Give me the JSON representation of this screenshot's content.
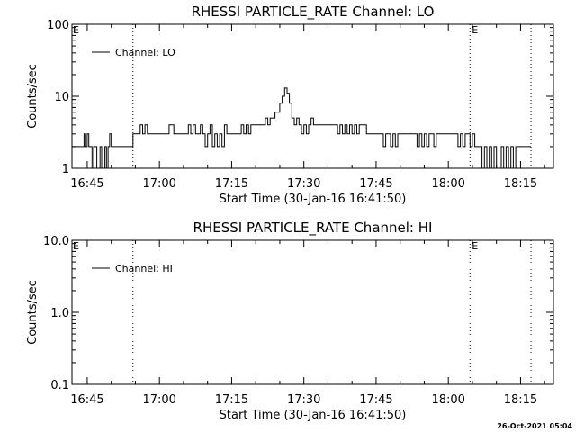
{
  "footer": {
    "timestamp": "26-Oct-2021 05:04"
  },
  "chart_data": [
    {
      "type": "line",
      "title": "RHESSI PARTICLE_RATE Channel: LO",
      "xlabel": "Start Time (30-Jan-16 16:41:50)",
      "ylabel": "Counts/sec",
      "xlim": [
        "16:41:50",
        "18:21:50"
      ],
      "ylim": [
        1,
        100
      ],
      "yscale": "log",
      "xticks": [
        "16:45",
        "17:00",
        "17:15",
        "17:30",
        "17:45",
        "18:00",
        "18:15"
      ],
      "yticks": [
        "1",
        "10",
        "100"
      ],
      "grid": false,
      "legend": {
        "position": "top-left",
        "entries": [
          "Channel: LO"
        ]
      },
      "color": "#000000",
      "markers": [
        {
          "time": "16:54:30",
          "label": ""
        },
        {
          "time": "18:04:30",
          "label": "E"
        },
        {
          "time": "18:17:10",
          "label": ""
        }
      ],
      "corner_label": "E",
      "series": [
        {
          "name": "Channel: LO",
          "x": [
            "16:41:50",
            "16:44:00",
            "16:44:20",
            "16:44:40",
            "16:45:00",
            "16:45:20",
            "16:45:40",
            "16:46:00",
            "16:46:20",
            "16:46:40",
            "16:47:00",
            "16:47:20",
            "16:47:40",
            "16:48:00",
            "16:48:20",
            "16:48:40",
            "16:49:00",
            "16:49:20",
            "16:49:40",
            "16:50:00",
            "16:50:20",
            "16:54:30",
            "16:55:00",
            "16:55:30",
            "16:56:00",
            "16:56:30",
            "16:57:00",
            "16:57:30",
            "16:58:00",
            "16:58:30",
            "16:59:00",
            "17:00:00",
            "17:01:00",
            "17:02:00",
            "17:03:00",
            "17:04:00",
            "17:05:00",
            "17:06:00",
            "17:06:30",
            "17:07:00",
            "17:07:30",
            "17:08:00",
            "17:08:30",
            "17:09:00",
            "17:09:30",
            "17:10:00",
            "17:10:30",
            "17:11:00",
            "17:11:30",
            "17:12:00",
            "17:12:30",
            "17:13:00",
            "17:13:30",
            "17:14:00",
            "17:15:00",
            "17:16:00",
            "17:16:30",
            "17:17:00",
            "17:17:30",
            "17:18:00",
            "17:18:30",
            "17:19:00",
            "17:20:00",
            "17:21:00",
            "17:22:00",
            "17:22:30",
            "17:23:00",
            "17:23:30",
            "17:24:00",
            "17:24:30",
            "17:25:00",
            "17:25:30",
            "17:26:00",
            "17:26:30",
            "17:27:00",
            "17:27:30",
            "17:28:00",
            "17:28:30",
            "17:29:00",
            "17:29:30",
            "17:30:00",
            "17:30:30",
            "17:31:00",
            "17:31:30",
            "17:32:00",
            "17:33:00",
            "17:34:00",
            "17:35:00",
            "17:36:00",
            "17:37:00",
            "17:37:30",
            "17:38:00",
            "17:38:30",
            "17:39:00",
            "17:39:30",
            "17:40:00",
            "17:40:30",
            "17:41:00",
            "17:41:30",
            "17:42:00",
            "17:43:00",
            "17:44:00",
            "17:45:00",
            "17:46:00",
            "17:46:30",
            "17:47:00",
            "17:47:30",
            "17:48:00",
            "17:48:30",
            "17:49:00",
            "17:49:30",
            "17:50:00",
            "17:51:00",
            "17:52:00",
            "17:53:00",
            "17:53:30",
            "17:54:00",
            "17:54:30",
            "17:55:00",
            "17:55:30",
            "17:56:00",
            "17:56:30",
            "17:57:00",
            "17:57:30",
            "17:58:00",
            "17:58:30",
            "17:59:00",
            "18:00:00",
            "18:01:00",
            "18:02:00",
            "18:02:30",
            "18:03:00",
            "18:03:30",
            "18:04:00",
            "18:04:30",
            "18:05:00",
            "18:05:30",
            "18:06:00",
            "18:06:30",
            "18:07:00",
            "18:07:30",
            "18:08:00",
            "18:08:30",
            "18:09:00",
            "18:09:30",
            "18:10:00",
            "18:10:30",
            "18:11:00",
            "18:11:30",
            "18:12:00",
            "18:12:30",
            "18:13:00",
            "18:13:30",
            "18:14:00",
            "18:14:30",
            "18:15:00",
            "18:15:30",
            "18:16:00",
            "18:16:30",
            "18:17:10"
          ],
          "values": [
            2,
            2,
            3,
            2,
            3,
            2,
            2,
            1,
            2,
            2,
            1,
            1,
            2,
            1,
            1,
            2,
            1,
            2,
            3,
            2,
            2,
            3,
            3,
            3,
            4,
            3,
            4,
            3,
            3,
            3,
            3,
            3,
            3,
            4,
            3,
            3,
            3,
            4,
            3,
            4,
            3,
            3,
            4,
            3,
            2,
            3,
            4,
            2,
            3,
            2,
            3,
            2,
            4,
            3,
            3,
            3,
            3,
            4,
            3,
            4,
            3,
            4,
            4,
            4,
            5,
            4,
            5,
            5,
            6,
            6,
            8,
            10,
            13,
            11,
            8,
            5,
            4,
            5,
            4,
            3,
            4,
            3,
            4,
            5,
            4,
            4,
            4,
            4,
            4,
            3,
            4,
            3,
            4,
            3,
            4,
            3,
            4,
            3,
            4,
            4,
            3,
            3,
            3,
            3,
            2,
            3,
            3,
            2,
            3,
            2,
            3,
            3,
            3,
            3,
            3,
            2,
            3,
            2,
            3,
            2,
            3,
            3,
            2,
            3,
            3,
            3,
            3,
            3,
            3,
            2,
            3,
            2,
            3,
            3,
            2,
            3,
            2,
            2,
            2,
            1,
            2,
            1,
            2,
            1,
            2,
            1,
            1,
            2,
            1,
            2,
            1,
            2,
            1,
            2,
            2,
            2,
            2,
            2,
            2,
            2
          ]
        }
      ]
    },
    {
      "type": "line",
      "title": "RHESSI PARTICLE_RATE Channel: HI",
      "xlabel": "Start Time (30-Jan-16 16:41:50)",
      "ylabel": "Counts/sec",
      "xlim": [
        "16:41:50",
        "18:21:50"
      ],
      "ylim": [
        0.1,
        10.0
      ],
      "yscale": "log",
      "xticks": [
        "16:45",
        "17:00",
        "17:15",
        "17:30",
        "17:45",
        "18:00",
        "18:15"
      ],
      "yticks": [
        "0.1",
        "1.0",
        "10.0"
      ],
      "grid": false,
      "legend": {
        "position": "top-left",
        "entries": [
          "Channel: HI"
        ]
      },
      "color": "#000000",
      "markers": [
        {
          "time": "16:54:30",
          "label": ""
        },
        {
          "time": "18:04:30",
          "label": "E"
        },
        {
          "time": "18:17:10",
          "label": ""
        }
      ],
      "corner_label": "E",
      "series": [
        {
          "name": "Channel: HI",
          "x": [],
          "values": []
        }
      ]
    }
  ]
}
